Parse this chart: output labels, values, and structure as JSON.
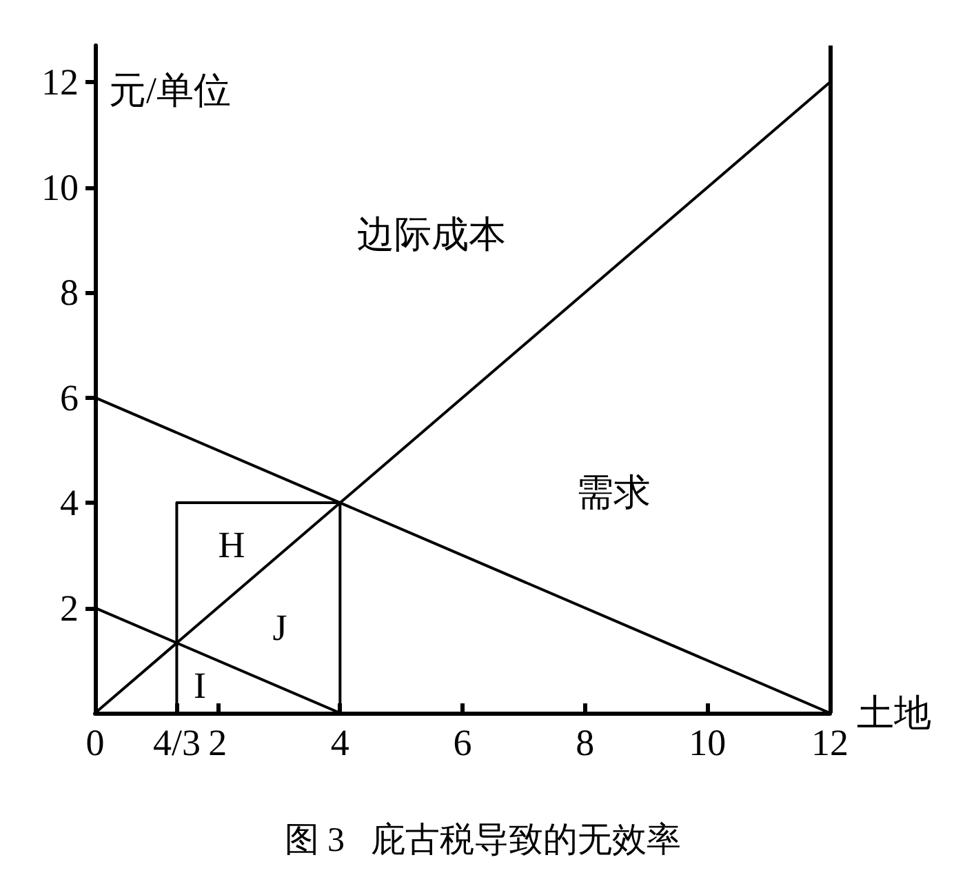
{
  "chart_data": {
    "type": "line",
    "title": "图 3   庇古税导致的无效率",
    "xlabel": "土地",
    "ylabel": "元/单位",
    "series": [
      {
        "color": "#000000",
        "x": [
          0,
          12
        ],
        "values": [
          0,
          12
        ]
      },
      {
        "color": "#000000",
        "x": [
          0,
          12
        ],
        "values": [
          6,
          0
        ]
      },
      {
        "color": "#000000",
        "x": [
          0,
          4
        ],
        "values": [
          2,
          0
        ]
      },
      {
        "color": "#000000",
        "x": [
          1.333,
          1.333,
          4,
          4
        ],
        "values": [
          0,
          4,
          4,
          0
        ]
      }
    ],
    "xlim": [
      0,
      12
    ],
    "ylim": [
      0,
      12.7
    ],
    "xticks": [
      0,
      {
        "value": 1.333,
        "label": "4/3"
      },
      2,
      4,
      6,
      8,
      10,
      12
    ],
    "yticks": [
      2,
      4,
      6,
      8,
      10,
      12
    ],
    "ref_lines": [
      {
        "axis": "x",
        "value": 12,
        "color": "#000000"
      }
    ],
    "annotations": [
      "边际成本",
      "需求",
      "H",
      "J",
      "I"
    ],
    "grid": false,
    "marker": "none",
    "line_style": "solid"
  }
}
